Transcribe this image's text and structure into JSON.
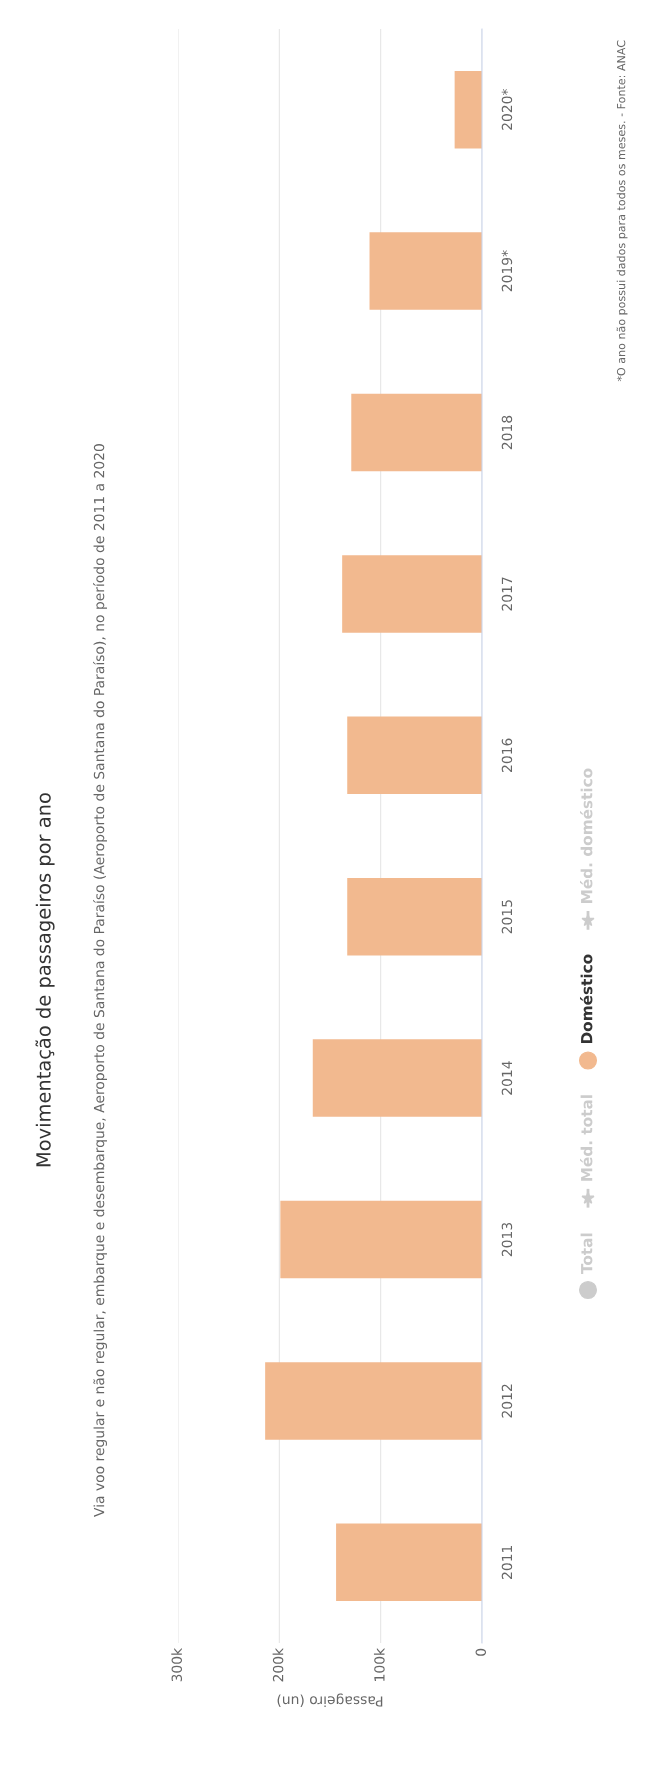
{
  "chart_data": {
    "type": "bar",
    "orientation": "horizontal",
    "title": "Movimentação de passageiros por ano",
    "subtitle": "Via voo regular e não regular, embarque e desembarque, Aeroporto de Santana do Paraíso (Aeroporto de Santana do Paraíso), no período de 2011 a 2020",
    "xlabel": "Passageiro (un)",
    "annotations": [
      "*O ano não possui dados para todos os meses. - Fonte: ANAC"
    ],
    "categories": [
      "2020*",
      "2019*",
      "2018",
      "2017",
      "2016",
      "2015",
      "2014",
      "2013",
      "2012",
      "2011"
    ],
    "series": [
      {
        "name": "Total",
        "type": "bar",
        "color": "#cccccc",
        "values": [
          null,
          null,
          null,
          null,
          null,
          null,
          null,
          null,
          null,
          null
        ]
      },
      {
        "name": "Méd. total",
        "type": "line",
        "color": "#cccccc",
        "values": [
          null,
          null,
          null,
          null,
          null,
          null,
          null,
          null,
          null,
          null
        ]
      },
      {
        "name": "Doméstico",
        "color": "#f2b98f",
        "values": [
          27000,
          111000,
          129000,
          138000,
          133000,
          133000,
          167000,
          199000,
          214000,
          144000
        ]
      },
      {
        "name": "Méd. doméstico",
        "type": "line",
        "color": "#cccccc",
        "values": [
          null,
          null,
          null,
          null,
          null,
          null,
          null,
          null,
          null,
          null
        ]
      }
    ],
    "xlim": [
      300000,
      0
    ],
    "xticks": [
      0,
      {
        "value": 100000,
        "label": "100k"
      },
      {
        "value": 200000,
        "label": "200k"
      },
      {
        "value": 300000,
        "label": "300k"
      }
    ],
    "grid": "x",
    "legend": "right",
    "marker": "star"
  }
}
